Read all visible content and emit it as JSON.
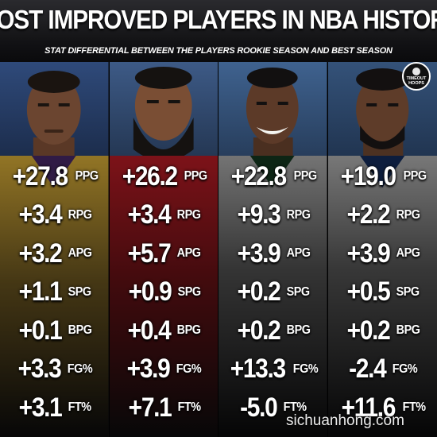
{
  "header": {
    "title": "MOST IMPROVED PLAYERS IN NBA HISTORY",
    "subtitle": "STAT DIFFERENTIAL BETWEEN THE PLAYERS ROOKIE SEASON AND BEST SEASON"
  },
  "logo": {
    "line1": "TIMEOUT",
    "line2": "HOOPS"
  },
  "watermark": "sichuanhong.com",
  "colors": {
    "background": "#08080a",
    "text": "#ffffff",
    "lakers_gold": "#e1b43a",
    "rockets_red": "#b31b24",
    "bucks_white": "#e8e8e8",
    "clippers_white": "#f0f0f0"
  },
  "players": [
    {
      "team_color": "lakers_gold",
      "stats": [
        {
          "value": "+27.8",
          "unit": "PPG"
        },
        {
          "value": "+3.4",
          "unit": "RPG"
        },
        {
          "value": "+3.2",
          "unit": "APG"
        },
        {
          "value": "+1.1",
          "unit": "SPG"
        },
        {
          "value": "+0.1",
          "unit": "BPG"
        },
        {
          "value": "+3.3",
          "unit": "FG%"
        },
        {
          "value": "+3.1",
          "unit": "FT%"
        }
      ]
    },
    {
      "team_color": "rockets_red",
      "stats": [
        {
          "value": "+26.2",
          "unit": "PPG"
        },
        {
          "value": "+3.4",
          "unit": "RPG"
        },
        {
          "value": "+5.7",
          "unit": "APG"
        },
        {
          "value": "+0.9",
          "unit": "SPG"
        },
        {
          "value": "+0.4",
          "unit": "BPG"
        },
        {
          "value": "+3.9",
          "unit": "FG%"
        },
        {
          "value": "+7.1",
          "unit": "FT%"
        }
      ]
    },
    {
      "team_color": "bucks_white",
      "stats": [
        {
          "value": "+22.8",
          "unit": "PPG"
        },
        {
          "value": "+9.3",
          "unit": "RPG"
        },
        {
          "value": "+3.9",
          "unit": "APG"
        },
        {
          "value": "+0.2",
          "unit": "SPG"
        },
        {
          "value": "+0.2",
          "unit": "BPG"
        },
        {
          "value": "+13.3",
          "unit": "FG%"
        },
        {
          "value": "-5.0",
          "unit": "FT%"
        }
      ]
    },
    {
      "team_color": "clippers_white",
      "stats": [
        {
          "value": "+19.0",
          "unit": "PPG"
        },
        {
          "value": "+2.2",
          "unit": "RPG"
        },
        {
          "value": "+3.9",
          "unit": "APG"
        },
        {
          "value": "+0.5",
          "unit": "SPG"
        },
        {
          "value": "+0.2",
          "unit": "BPG"
        },
        {
          "value": "-2.4",
          "unit": "FG%"
        },
        {
          "value": "+11.6",
          "unit": "FT%"
        }
      ]
    }
  ]
}
